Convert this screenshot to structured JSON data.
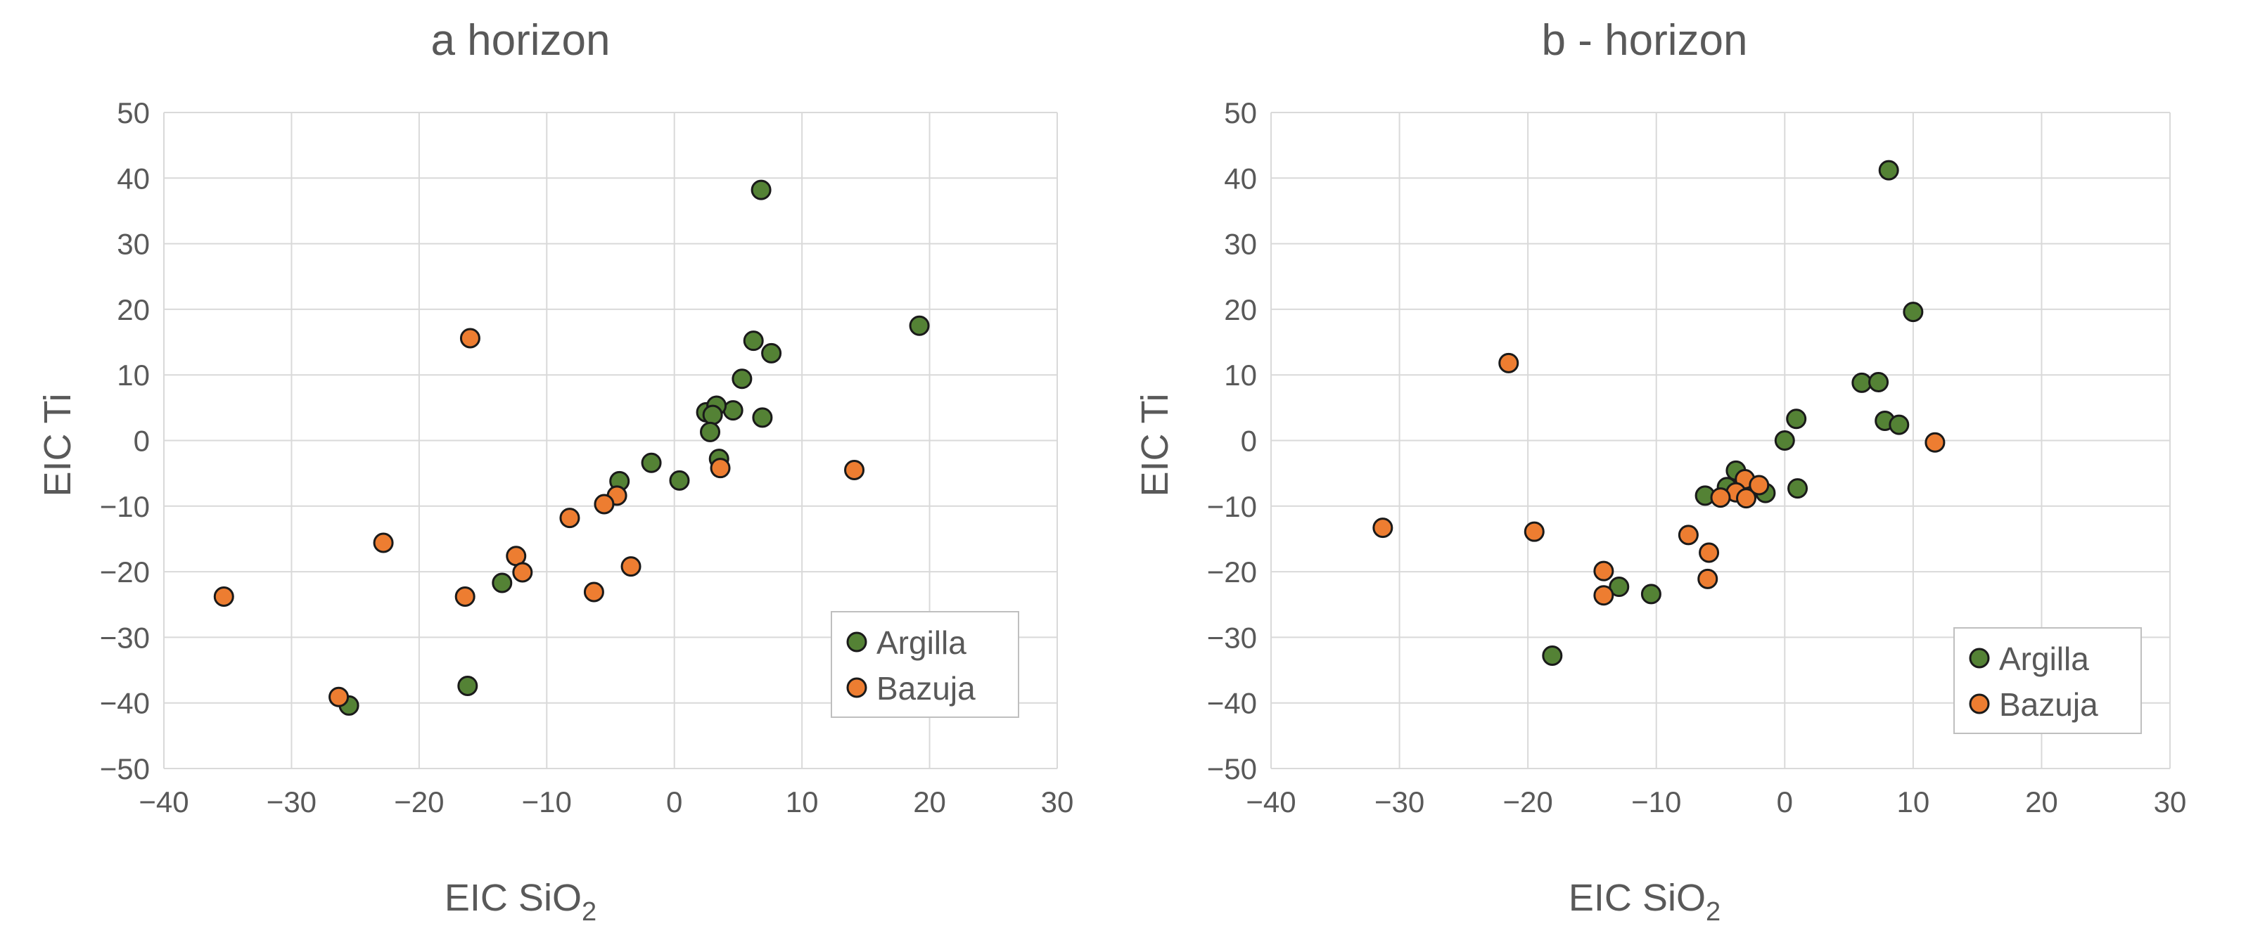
{
  "colors": {
    "argilla": "#548235",
    "bazuja": "#ED7D31",
    "marker_outline": "#1a1a1a",
    "grid": "#d9d9d9",
    "text": "#595959",
    "legend_border": "#bfbfbf"
  },
  "chart_data": [
    {
      "type": "scatter",
      "title": "a horizon",
      "xlabel": "EIC SiO",
      "xlabel_sub": "2",
      "ylabel": "EIC Ti",
      "xlim": [
        -40,
        30
      ],
      "ylim": [
        -50,
        50
      ],
      "xticks": [
        -40,
        -30,
        -20,
        -10,
        0,
        10,
        20,
        30
      ],
      "yticks": [
        -50,
        -40,
        -30,
        -20,
        -10,
        0,
        10,
        20,
        30,
        40,
        50
      ],
      "xtick_labels": [
        "−40",
        "−30",
        "−20",
        "−10",
        "0",
        "10",
        "20",
        "30"
      ],
      "ytick_labels": [
        "−50",
        "−40",
        "−30",
        "−20",
        "−10",
        "0",
        "10",
        "20",
        "30",
        "40",
        "50"
      ],
      "grid": true,
      "legend_position": "bottom-right",
      "series": [
        {
          "name": "Argilla",
          "color_key": "argilla",
          "points": [
            [
              6.8,
              38.2
            ],
            [
              19.2,
              17.5
            ],
            [
              6.2,
              15.2
            ],
            [
              7.6,
              13.3
            ],
            [
              5.3,
              9.4
            ],
            [
              4.6,
              4.6
            ],
            [
              2.5,
              4.3
            ],
            [
              3.3,
              5.3
            ],
            [
              3.0,
              3.9
            ],
            [
              2.8,
              1.3
            ],
            [
              6.9,
              3.5
            ],
            [
              3.5,
              -2.8
            ],
            [
              -1.8,
              -3.4
            ],
            [
              0.4,
              -6.1
            ],
            [
              -4.3,
              -6.2
            ],
            [
              -13.5,
              -21.7
            ],
            [
              -16.2,
              -37.4
            ],
            [
              -25.5,
              -40.4
            ]
          ]
        },
        {
          "name": "Bazuja",
          "color_key": "bazuja",
          "points": [
            [
              -16.0,
              15.6
            ],
            [
              14.1,
              -4.5
            ],
            [
              3.6,
              -4.2
            ],
            [
              -4.5,
              -8.4
            ],
            [
              -5.5,
              -9.7
            ],
            [
              -8.2,
              -11.8
            ],
            [
              -22.8,
              -15.6
            ],
            [
              -12.4,
              -17.6
            ],
            [
              -11.9,
              -20.1
            ],
            [
              -3.4,
              -19.2
            ],
            [
              -6.3,
              -23.1
            ],
            [
              -16.4,
              -23.8
            ],
            [
              -35.3,
              -23.8
            ],
            [
              -26.3,
              -39.1
            ]
          ]
        }
      ]
    },
    {
      "type": "scatter",
      "title": "b - horizon",
      "xlabel": "EIC SiO",
      "xlabel_sub": "2",
      "ylabel": "EIC Ti",
      "xlim": [
        -40,
        30
      ],
      "ylim": [
        -50,
        50
      ],
      "xticks": [
        -40,
        -30,
        -20,
        -10,
        0,
        10,
        20,
        30
      ],
      "yticks": [
        -50,
        -40,
        -30,
        -20,
        -10,
        0,
        10,
        20,
        30,
        40,
        50
      ],
      "xtick_labels": [
        "−40",
        "−30",
        "−20",
        "−10",
        "0",
        "10",
        "20",
        "30"
      ],
      "ytick_labels": [
        "−50",
        "−40",
        "−30",
        "−20",
        "−10",
        "0",
        "10",
        "20",
        "30",
        "40",
        "50"
      ],
      "grid": true,
      "legend_position": "bottom-right",
      "series": [
        {
          "name": "Argilla",
          "color_key": "argilla",
          "points": [
            [
              8.1,
              41.2
            ],
            [
              10.0,
              19.6
            ],
            [
              6.0,
              8.8
            ],
            [
              7.3,
              8.9
            ],
            [
              7.8,
              3.0
            ],
            [
              8.9,
              2.4
            ],
            [
              0.0,
              0.0
            ],
            [
              0.9,
              3.3
            ],
            [
              1.0,
              -7.3
            ],
            [
              -3.8,
              -4.6
            ],
            [
              -4.5,
              -7.1
            ],
            [
              -6.2,
              -8.4
            ],
            [
              -1.5,
              -8.0
            ],
            [
              -12.9,
              -22.3
            ],
            [
              -10.4,
              -23.4
            ],
            [
              -18.1,
              -32.8
            ]
          ]
        },
        {
          "name": "Bazuja",
          "color_key": "bazuja",
          "points": [
            [
              -21.5,
              11.8
            ],
            [
              11.7,
              -0.3
            ],
            [
              -3.1,
              -5.9
            ],
            [
              -2.0,
              -6.8
            ],
            [
              -3.8,
              -7.9
            ],
            [
              -5.0,
              -8.7
            ],
            [
              -3.0,
              -8.8
            ],
            [
              -7.5,
              -14.4
            ],
            [
              -5.9,
              -17.1
            ],
            [
              -6.0,
              -21.1
            ],
            [
              -19.5,
              -13.9
            ],
            [
              -31.3,
              -13.3
            ],
            [
              -14.1,
              -19.9
            ],
            [
              -14.1,
              -23.6
            ]
          ]
        }
      ]
    }
  ]
}
